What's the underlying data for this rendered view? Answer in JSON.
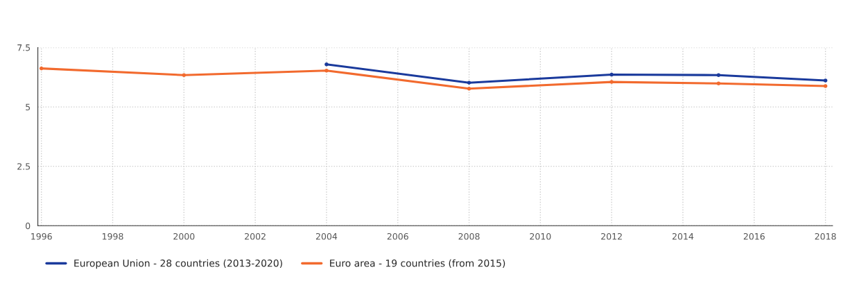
{
  "chart_data": {
    "type": "line",
    "x": [
      1996,
      2000,
      2004,
      2008,
      2012,
      2015,
      2018
    ],
    "series": [
      {
        "name": "European Union - 28 countries (2013-2020)",
        "color": "#1a3a9c",
        "values": [
          null,
          null,
          6.79,
          6.02,
          6.36,
          6.34,
          6.11
        ]
      },
      {
        "name": "Euro area - 19 countries (from 2015)",
        "color": "#f26a2e",
        "values": [
          6.62,
          6.34,
          6.53,
          5.77,
          6.05,
          5.99,
          5.88
        ]
      }
    ],
    "xlim": [
      1995.9,
      2018.2
    ],
    "xticks": [
      1996,
      1998,
      2000,
      2002,
      2004,
      2006,
      2008,
      2010,
      2012,
      2014,
      2016,
      2018
    ],
    "ylim": [
      0,
      7.5
    ],
    "yticks": [
      0,
      2.5,
      5,
      7.5
    ],
    "grid": true,
    "legend": "bottom left",
    "marker": "circle",
    "line_style": "solid"
  }
}
